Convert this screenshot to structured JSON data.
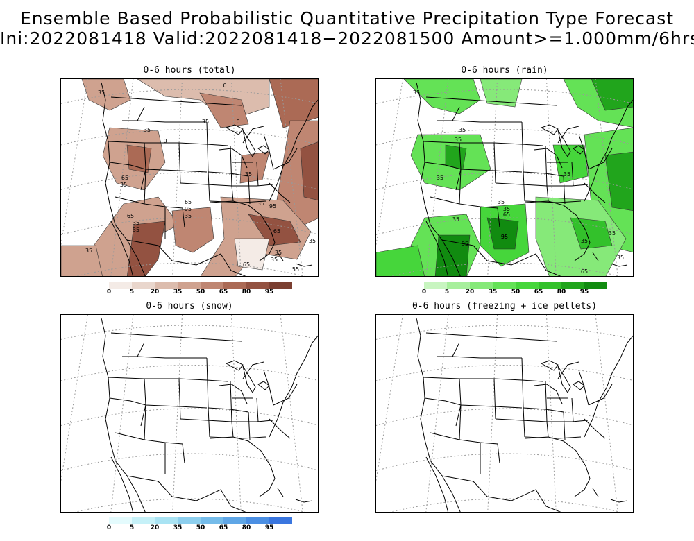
{
  "title": {
    "line1": "Ensemble Based Probabilistic Quantitative Precipitation Type Forecast",
    "line2": "Ini:2022081418 Valid:2022081418−2022081500 Amount>=1.000mm/6hrs"
  },
  "panels": [
    {
      "id": "total",
      "title": "0-6 hours (total)",
      "has_field": true,
      "contour_labels": [
        "35",
        "35",
        "35",
        "65",
        "35",
        "0",
        "0",
        "35",
        "65",
        "35",
        "35",
        "65",
        "95",
        "35",
        "35",
        "95",
        "65",
        "35",
        "35",
        "65",
        "35",
        "55",
        "35",
        "0"
      ]
    },
    {
      "id": "rain",
      "title": "0-6 hours (rain)",
      "has_field": true,
      "contour_labels": [
        "35",
        "35",
        "35",
        "35",
        "35",
        "65",
        "35",
        "95",
        "35",
        "95",
        "35",
        "35",
        "35",
        "65",
        "35",
        "35"
      ]
    },
    {
      "id": "snow",
      "title": "0-6 hours (snow)",
      "has_field": false,
      "contour_labels": []
    },
    {
      "id": "frz",
      "title": "0-6 hours (freezing + ice pellets)",
      "has_field": false,
      "contour_labels": []
    }
  ],
  "colorbars": {
    "total": {
      "labels": [
        "0",
        "5",
        "20",
        "35",
        "50",
        "65",
        "80",
        "95"
      ],
      "colors": [
        "#f4ebe6",
        "#e9d6cc",
        "#dcbcad",
        "#cfa28f",
        "#bf8672",
        "#ab6a55",
        "#935241",
        "#7b3f31"
      ]
    },
    "rain": {
      "labels": [
        "0",
        "5",
        "20",
        "35",
        "50",
        "65",
        "80",
        "95"
      ],
      "colors": [
        "#c8f5c0",
        "#a7ef9c",
        "#86e979",
        "#64e256",
        "#46d63b",
        "#33c12b",
        "#21a51c",
        "#118b10"
      ]
    },
    "snow": {
      "labels": [
        "0",
        "5",
        "20",
        "35",
        "50",
        "65",
        "80",
        "95"
      ],
      "colors": [
        "#e4fbfd",
        "#c6f1f8",
        "#a9e3f3",
        "#8dcfee",
        "#75bcea",
        "#5fa6e6",
        "#4b8fe3",
        "#3a76df"
      ]
    }
  }
}
